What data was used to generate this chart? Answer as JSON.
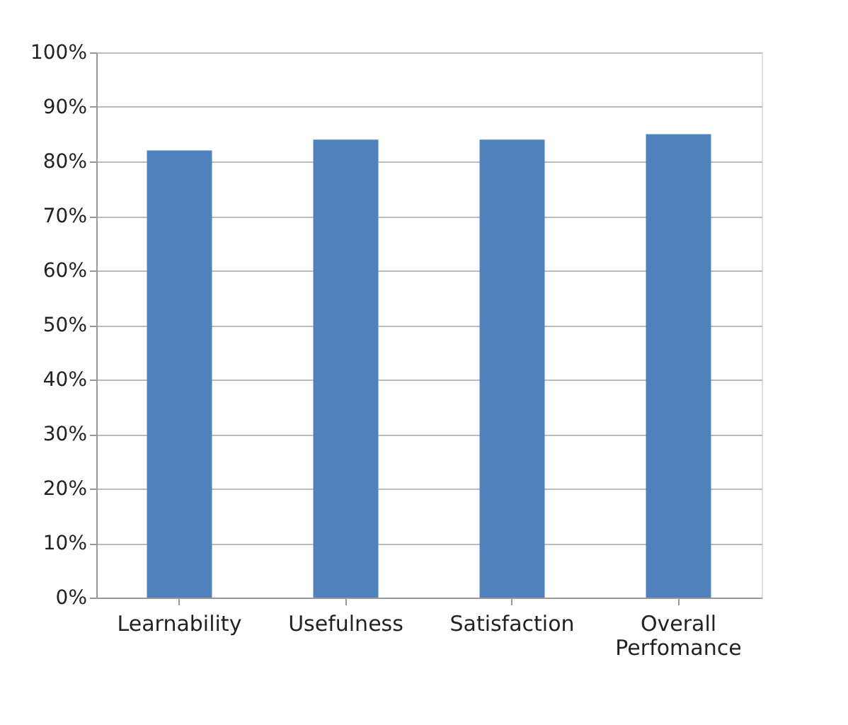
{
  "chart_data": {
    "type": "bar",
    "categories": [
      "Learnability",
      "Usefulness",
      "Satisfaction",
      "Overall Perfomance"
    ],
    "values": [
      82,
      84,
      84,
      85
    ],
    "color": "#4f81bd",
    "ylim": [
      0,
      100
    ],
    "yticks": [
      {
        "value": 0,
        "label": "0%"
      },
      {
        "value": 10,
        "label": "10%"
      },
      {
        "value": 20,
        "label": "20%"
      },
      {
        "value": 30,
        "label": "30%"
      },
      {
        "value": 40,
        "label": "40%"
      },
      {
        "value": 50,
        "label": "50%"
      },
      {
        "value": 60,
        "label": "60%"
      },
      {
        "value": 70,
        "label": "70%"
      },
      {
        "value": 80,
        "label": "80%"
      },
      {
        "value": 90,
        "label": "90%"
      },
      {
        "value": 100,
        "label": "100%"
      }
    ],
    "grid": "y"
  }
}
